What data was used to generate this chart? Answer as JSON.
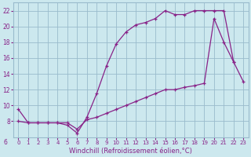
{
  "xlabel": "Windchill (Refroidissement éolien,°C)",
  "bg_color": "#cce8ee",
  "line_color": "#882288",
  "grid_color": "#99bbcc",
  "spine_color": "#99bbcc",
  "xlim": [
    -0.5,
    23.5
  ],
  "ylim": [
    6,
    23
  ],
  "xticks": [
    0,
    1,
    2,
    3,
    4,
    5,
    6,
    7,
    8,
    9,
    10,
    11,
    12,
    13,
    14,
    15,
    16,
    17,
    18,
    19,
    20,
    21,
    22,
    23
  ],
  "yticks": [
    8,
    10,
    12,
    14,
    16,
    18,
    20,
    22
  ],
  "ytick_labels": [
    "8",
    "10",
    "12",
    "14",
    "16",
    "18",
    "20",
    "22"
  ],
  "line1_x": [
    0,
    1,
    2,
    3,
    4,
    5,
    6,
    7,
    8,
    9,
    10,
    11,
    12,
    13,
    14,
    15,
    16,
    17,
    18,
    19,
    20,
    21,
    22
  ],
  "line1_y": [
    9.5,
    7.8,
    7.8,
    7.8,
    7.8,
    7.5,
    6.5,
    8.5,
    11.5,
    15.0,
    17.8,
    19.3,
    20.2,
    20.5,
    21.0,
    22.0,
    21.5,
    21.5,
    22.0,
    22.0,
    22.0,
    22.0,
    15.5
  ],
  "line2_x": [
    0,
    1,
    2,
    3,
    4,
    5,
    6,
    7,
    8,
    9,
    10,
    11,
    12,
    13,
    14,
    15,
    16,
    17,
    18,
    19,
    20,
    21,
    22,
    23
  ],
  "line2_y": [
    8.0,
    7.8,
    7.8,
    7.8,
    7.8,
    7.8,
    7.0,
    8.2,
    8.5,
    9.0,
    9.5,
    10.0,
    10.5,
    11.0,
    11.5,
    12.0,
    12.0,
    12.3,
    12.5,
    12.8,
    21.0,
    18.0,
    15.5,
    13.0
  ]
}
